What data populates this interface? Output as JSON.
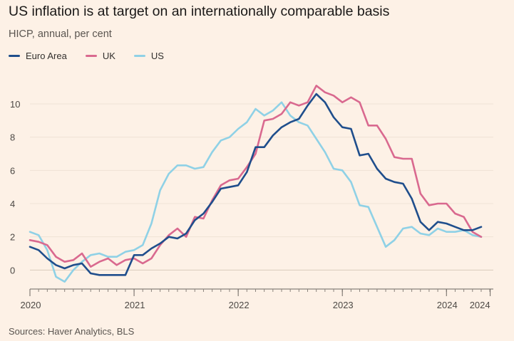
{
  "chart_data": {
    "type": "line",
    "title": "US inflation is at target on an internationally comparable basis",
    "subtitle": "HICP, annual, per cent",
    "source": "Sources: Haver Analytics, BLS",
    "ylim": [
      -0.8,
      11.2
    ],
    "yticks": [
      0,
      2,
      4,
      6,
      8,
      10
    ],
    "xlim": [
      2020.0,
      2024.45
    ],
    "xticks": [
      {
        "value": 2020.0,
        "label": "2020"
      },
      {
        "value": 2021.0,
        "label": "2021"
      },
      {
        "value": 2022.0,
        "label": "2022"
      },
      {
        "value": 2023.0,
        "label": "2023"
      },
      {
        "value": 2024.0,
        "label": "2024"
      },
      {
        "value": 2024.42,
        "label": "2024"
      }
    ],
    "x_start": 2020.0,
    "x_step_months": 1,
    "series": [
      {
        "name": "Euro Area",
        "color": "#1f4e8c",
        "values": [
          1.4,
          1.2,
          0.7,
          0.3,
          0.1,
          0.3,
          0.4,
          -0.2,
          -0.3,
          -0.3,
          -0.3,
          -0.3,
          0.9,
          0.9,
          1.3,
          1.6,
          2.0,
          1.9,
          2.2,
          3.0,
          3.4,
          4.1,
          4.9,
          5.0,
          5.1,
          5.9,
          7.4,
          7.4,
          8.1,
          8.6,
          8.9,
          9.1,
          9.9,
          10.6,
          10.1,
          9.2,
          8.6,
          8.5,
          6.9,
          7.0,
          6.1,
          5.5,
          5.3,
          5.2,
          4.3,
          2.9,
          2.4,
          2.9,
          2.8,
          2.6,
          2.4,
          2.4,
          2.6
        ]
      },
      {
        "name": "UK",
        "color": "#d9698f",
        "values": [
          1.8,
          1.7,
          1.5,
          0.8,
          0.5,
          0.6,
          1.0,
          0.2,
          0.5,
          0.7,
          0.3,
          0.6,
          0.7,
          0.4,
          0.7,
          1.5,
          2.1,
          2.5,
          2.0,
          3.2,
          3.1,
          4.2,
          5.1,
          5.4,
          5.5,
          6.2,
          7.0,
          9.0,
          9.1,
          9.4,
          10.1,
          9.9,
          10.1,
          11.1,
          10.7,
          10.5,
          10.1,
          10.4,
          10.1,
          8.7,
          8.7,
          7.9,
          6.8,
          6.7,
          6.7,
          4.6,
          3.9,
          4.0,
          4.0,
          3.4,
          3.2,
          2.3,
          2.0
        ]
      },
      {
        "name": "US",
        "color": "#8fd1e6",
        "values": [
          2.3,
          2.1,
          1.2,
          -0.4,
          -0.7,
          0.0,
          0.5,
          0.9,
          1.0,
          0.8,
          0.8,
          1.1,
          1.2,
          1.5,
          2.8,
          4.8,
          5.8,
          6.3,
          6.3,
          6.1,
          6.2,
          7.1,
          7.8,
          8.0,
          8.5,
          8.9,
          9.7,
          9.3,
          9.6,
          10.1,
          9.3,
          8.9,
          8.7,
          7.9,
          7.1,
          6.1,
          6.0,
          5.3,
          3.9,
          3.8,
          2.6,
          1.4,
          1.8,
          2.5,
          2.6,
          2.2,
          2.1,
          2.5,
          2.3,
          2.3,
          2.4,
          2.1,
          2.0
        ]
      }
    ]
  }
}
